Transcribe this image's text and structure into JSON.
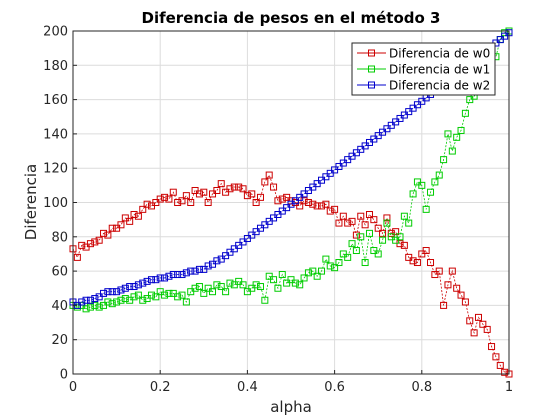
{
  "chart_data": {
    "type": "line",
    "title": "Diferencia de pesos en el método 3",
    "xlabel": "alpha",
    "ylabel": "Diferencia",
    "xlim": [
      0,
      1
    ],
    "ylim": [
      0,
      200
    ],
    "xticks": [
      "0",
      "0.2",
      "0.4",
      "0.6",
      "0.8",
      "1"
    ],
    "yticks": [
      "0",
      "20",
      "40",
      "60",
      "80",
      "100",
      "120",
      "140",
      "160",
      "180",
      "200"
    ],
    "grid": true,
    "legend_position": "top-right",
    "marker": "square",
    "series": [
      {
        "name": "Diferencia de w0",
        "color": "#cc0000",
        "x": [
          0,
          0.01,
          0.02,
          0.03,
          0.04,
          0.05,
          0.06,
          0.07,
          0.08,
          0.09,
          0.1,
          0.11,
          0.12,
          0.13,
          0.14,
          0.15,
          0.16,
          0.17,
          0.18,
          0.19,
          0.2,
          0.21,
          0.22,
          0.23,
          0.24,
          0.25,
          0.26,
          0.27,
          0.28,
          0.29,
          0.3,
          0.31,
          0.32,
          0.33,
          0.34,
          0.35,
          0.36,
          0.37,
          0.38,
          0.39,
          0.4,
          0.41,
          0.42,
          0.43,
          0.44,
          0.45,
          0.46,
          0.47,
          0.48,
          0.49,
          0.5,
          0.51,
          0.52,
          0.53,
          0.54,
          0.55,
          0.56,
          0.57,
          0.58,
          0.59,
          0.6,
          0.61,
          0.62,
          0.63,
          0.64,
          0.65,
          0.66,
          0.67,
          0.68,
          0.69,
          0.7,
          0.71,
          0.72,
          0.73,
          0.74,
          0.75,
          0.76,
          0.77,
          0.78,
          0.79,
          0.8,
          0.81,
          0.82,
          0.83,
          0.84,
          0.85,
          0.86,
          0.87,
          0.88,
          0.89,
          0.9,
          0.91,
          0.92,
          0.93,
          0.94,
          0.95,
          0.96,
          0.97,
          0.98,
          0.99,
          1
        ],
        "y": [
          73,
          68,
          75,
          74,
          76,
          77,
          78,
          82,
          81,
          85,
          85,
          87,
          91,
          89,
          93,
          92,
          96,
          99,
          98,
          100,
          102,
          103,
          102,
          106,
          100,
          101,
          104,
          100,
          107,
          105,
          106,
          100,
          105,
          107,
          111,
          106,
          108,
          109,
          109,
          108,
          104,
          105,
          100,
          103,
          112,
          116,
          109,
          101,
          102,
          103,
          101,
          100,
          98,
          101,
          100,
          99,
          98,
          98,
          99,
          95,
          96,
          88,
          92,
          88,
          89,
          81,
          92,
          87,
          93,
          90,
          85,
          82,
          91,
          82,
          83,
          76,
          75,
          68,
          66,
          65,
          70,
          72,
          65,
          58,
          60,
          40,
          52,
          60,
          50,
          46,
          42,
          31,
          24,
          33,
          29,
          26,
          16,
          10,
          5,
          1,
          0
        ]
      },
      {
        "name": "Diferencia de w1",
        "color": "#00cc00",
        "x": [
          0,
          0.01,
          0.02,
          0.03,
          0.04,
          0.05,
          0.06,
          0.07,
          0.08,
          0.09,
          0.1,
          0.11,
          0.12,
          0.13,
          0.14,
          0.15,
          0.16,
          0.17,
          0.18,
          0.19,
          0.2,
          0.21,
          0.22,
          0.23,
          0.24,
          0.25,
          0.26,
          0.27,
          0.28,
          0.29,
          0.3,
          0.31,
          0.32,
          0.33,
          0.34,
          0.35,
          0.36,
          0.37,
          0.38,
          0.39,
          0.4,
          0.41,
          0.42,
          0.43,
          0.44,
          0.45,
          0.46,
          0.47,
          0.48,
          0.49,
          0.5,
          0.51,
          0.52,
          0.53,
          0.54,
          0.55,
          0.56,
          0.57,
          0.58,
          0.59,
          0.6,
          0.61,
          0.62,
          0.63,
          0.64,
          0.65,
          0.66,
          0.67,
          0.68,
          0.69,
          0.7,
          0.71,
          0.72,
          0.73,
          0.74,
          0.75,
          0.76,
          0.77,
          0.78,
          0.79,
          0.8,
          0.81,
          0.82,
          0.83,
          0.84,
          0.85,
          0.86,
          0.87,
          0.88,
          0.89,
          0.9,
          0.91,
          0.92,
          0.93,
          0.94,
          0.95,
          0.96,
          0.97,
          0.98,
          0.99,
          1
        ],
        "y": [
          40,
          39,
          40,
          38,
          39,
          40,
          39,
          40,
          42,
          41,
          42,
          43,
          44,
          43,
          45,
          46,
          43,
          44,
          46,
          45,
          48,
          46,
          47,
          47,
          45,
          46,
          42,
          48,
          50,
          51,
          47,
          50,
          48,
          52,
          51,
          48,
          53,
          52,
          54,
          52,
          48,
          50,
          52,
          51,
          43,
          57,
          55,
          50,
          58,
          53,
          55,
          53,
          52,
          56,
          59,
          60,
          57,
          60,
          67,
          63,
          62,
          65,
          70,
          68,
          76,
          72,
          80,
          65,
          82,
          72,
          70,
          78,
          88,
          80,
          78,
          80,
          92,
          88,
          105,
          112,
          110,
          96,
          106,
          112,
          116,
          125,
          140,
          130,
          138,
          142,
          152,
          160,
          162,
          165,
          175,
          180,
          188,
          185,
          195,
          199,
          200
        ]
      },
      {
        "name": "Diferencia de w2",
        "color": "#0000cc",
        "x": [
          0,
          0.01,
          0.02,
          0.03,
          0.04,
          0.05,
          0.06,
          0.07,
          0.08,
          0.09,
          0.1,
          0.11,
          0.12,
          0.13,
          0.14,
          0.15,
          0.16,
          0.17,
          0.18,
          0.19,
          0.2,
          0.21,
          0.22,
          0.23,
          0.24,
          0.25,
          0.26,
          0.27,
          0.28,
          0.29,
          0.3,
          0.31,
          0.32,
          0.33,
          0.34,
          0.35,
          0.36,
          0.37,
          0.38,
          0.39,
          0.4,
          0.41,
          0.42,
          0.43,
          0.44,
          0.45,
          0.46,
          0.47,
          0.48,
          0.49,
          0.5,
          0.51,
          0.52,
          0.53,
          0.54,
          0.55,
          0.56,
          0.57,
          0.58,
          0.59,
          0.6,
          0.61,
          0.62,
          0.63,
          0.64,
          0.65,
          0.66,
          0.67,
          0.68,
          0.69,
          0.7,
          0.71,
          0.72,
          0.73,
          0.74,
          0.75,
          0.76,
          0.77,
          0.78,
          0.79,
          0.8,
          0.81,
          0.82,
          0.83,
          0.84,
          0.85,
          0.86,
          0.87,
          0.88,
          0.89,
          0.9,
          0.91,
          0.92,
          0.93,
          0.94,
          0.95,
          0.96,
          0.97,
          0.98,
          0.99,
          1
        ],
        "y": [
          42,
          40,
          42,
          43,
          43,
          44,
          45,
          47,
          48,
          48,
          48,
          49,
          50,
          51,
          51,
          52,
          53,
          54,
          55,
          55,
          56,
          56,
          57,
          58,
          58,
          58,
          59,
          60,
          60,
          61,
          61,
          63,
          64,
          66,
          67,
          69,
          71,
          73,
          75,
          77,
          79,
          81,
          83,
          85,
          87,
          89,
          91,
          93,
          95,
          97,
          99,
          101,
          103,
          105,
          107,
          109,
          111,
          113,
          115,
          117,
          119,
          121,
          123,
          125,
          127,
          129,
          131,
          133,
          135,
          137,
          139,
          141,
          143,
          145,
          147,
          149,
          151,
          153,
          155,
          157,
          159,
          161,
          163,
          165,
          167,
          169,
          171,
          173,
          175,
          177,
          179,
          181,
          183,
          185,
          187,
          189,
          191,
          193,
          195,
          197,
          199
        ]
      }
    ]
  }
}
